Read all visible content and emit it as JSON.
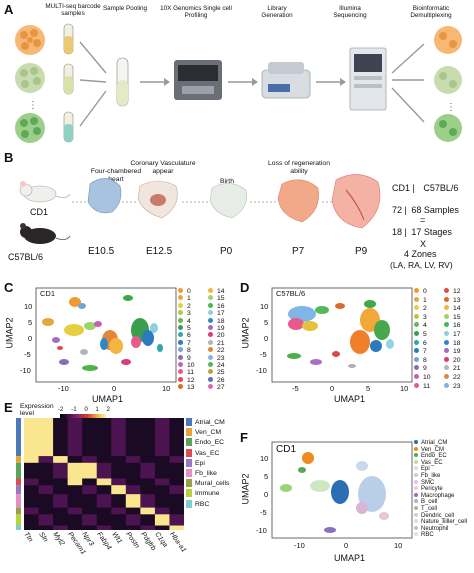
{
  "panels": {
    "a": "A",
    "b": "B",
    "c": "C",
    "d": "D",
    "e": "E",
    "f": "F"
  },
  "panelA": {
    "steps": [
      "MULTI-seq barcode samples",
      "Sample Pooling",
      "10X Genomics Single cell Profiling",
      "Library Generation",
      "Illumina Sequencing",
      "Bioinformatic Demultiplexing"
    ]
  },
  "panelB": {
    "mouse1": "CD1",
    "mouse2": "C57BL/6",
    "events": [
      "Four-chambered heart",
      "Coronary Vasculature appear",
      "Birth",
      "Loss of regeneration ability"
    ],
    "stages": [
      "E10.5",
      "E12.5",
      "P0",
      "P7",
      "P9"
    ],
    "summary": {
      "header_left": "CD1 |",
      "header_right": "C57BL/6",
      "samples_left": "72 |",
      "samples_right": "68 Samples",
      "stages_left": "18 |",
      "stages_right": "17 Stages",
      "times": "X",
      "zones": "4 Zones",
      "zones_detail": "(LA, RA, LV, RV)"
    }
  },
  "panelC": {
    "title": "CD1",
    "xlabel": "UMAP1",
    "ylabel": "UMAP2",
    "xticks": [
      "-10",
      "0",
      "10"
    ],
    "yticks": [
      "10",
      "5",
      "0",
      "-5",
      "-10"
    ],
    "legend_col1": [
      "0",
      "1",
      "2",
      "3",
      "4",
      "5",
      "6",
      "7",
      "8",
      "9",
      "10",
      "11",
      "12",
      "13"
    ],
    "legend_col2": [
      "14",
      "15",
      "16",
      "17",
      "18",
      "19",
      "20",
      "21",
      "22",
      "23",
      "24",
      "25",
      "26",
      "27"
    ]
  },
  "panelD": {
    "title": "C57BL/6",
    "xlabel": "UMAP1",
    "ylabel": "UMAP2",
    "xticks": [
      "-5",
      "0",
      "5",
      "10"
    ],
    "yticks": [
      "10",
      "5",
      "0",
      "-5",
      "-10"
    ],
    "legend_col1": [
      "0",
      "1",
      "2",
      "3",
      "4",
      "5",
      "6",
      "7",
      "8",
      "9",
      "10",
      "11"
    ],
    "legend_col2": [
      "12",
      "13",
      "14",
      "15",
      "16",
      "17",
      "18",
      "19",
      "20",
      "21",
      "22",
      "23"
    ]
  },
  "panelE": {
    "scale_title": "Expression level",
    "scale_ticks": [
      "-2",
      "-1",
      "0",
      "1",
      "2"
    ],
    "genes": [
      "Ttn",
      "Sln",
      "Myl2",
      "Pecam1",
      "Npr3",
      "Fabp4",
      "Wt1",
      "Postn",
      "Pdgfrb",
      "C1qa",
      "Hba-a1"
    ],
    "groups": [
      "Atrial_CM",
      "Ven_CM",
      "Endo_EC",
      "Vas_EC",
      "Epi",
      "Fb_like",
      "Mural_cells",
      "Immune",
      "RBC"
    ],
    "group_colors": [
      "#4e79b8",
      "#e8a33d",
      "#5aa45a",
      "#d94f4f",
      "#9a78c0",
      "#e58fc4",
      "#9aa04a",
      "#b8d43a",
      "#7fcbd6"
    ]
  },
  "panelF": {
    "title": "CD1",
    "xlabel": "UMAP1",
    "ylabel": "UMAP2",
    "xticks": [
      "-10",
      "0",
      "10"
    ],
    "yticks": [
      "10",
      "5",
      "0",
      "-5",
      "-10"
    ],
    "legend": [
      "Atrial_CM",
      "Ven_CM",
      "Endo_EC",
      "Vas_EC",
      "Epi",
      "Fb_like",
      "SMC",
      "Pericyte",
      "Macrophage",
      "B_cell",
      "T_cell",
      "Dendric_cell",
      "Nature_killer_cell",
      "Neutrophil",
      "RBC"
    ],
    "legend_colors": [
      "#2a6fb3",
      "#f08a1e",
      "#56a84f",
      "#c3dc8f",
      "#cfe7c2",
      "#b9cfe8",
      "#e0c3dd",
      "#f6c8d0",
      "#8d6fbf",
      "#9fb6d8",
      "#c9a6a6",
      "#d8c8e8",
      "#e5d5e5",
      "#c0c0c0",
      "#f0d8e0"
    ]
  }
}
